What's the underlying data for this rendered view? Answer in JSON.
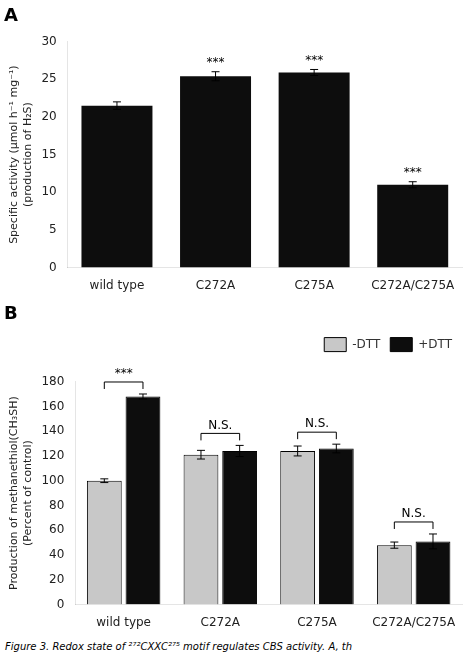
{
  "chart_data": [
    {
      "type": "bar",
      "title": "A",
      "categories": [
        "wild type",
        "C272A",
        "C275A",
        "C272A/C275A"
      ],
      "values": [
        21.5,
        25.4,
        25.9,
        11.0
      ],
      "errors": [
        0.5,
        0.6,
        0.4,
        0.4
      ],
      "color": "#0d0d0d",
      "ylabel": "Specific activity (μmol h⁻¹ mg⁻¹)\n(production of H₂S)",
      "ylim": [
        0,
        30
      ],
      "yticks": [
        0,
        5,
        10,
        15,
        20,
        25,
        30
      ],
      "grid": false,
      "annotations": [
        {
          "category": "C272A",
          "text": "***"
        },
        {
          "category": "C275A",
          "text": "***"
        },
        {
          "category": "C272A/C275A",
          "text": "***"
        }
      ]
    },
    {
      "type": "bar",
      "title": "B",
      "categories": [
        "wild type",
        "C272A",
        "C275A",
        "C272A/C275A"
      ],
      "series": [
        {
          "name": "-DTT",
          "color": "#c8c8c8",
          "values": [
            100,
            121,
            124,
            48
          ],
          "errors": [
            1.5,
            3.5,
            4.0,
            2.5
          ]
        },
        {
          "name": "+DTT",
          "color": "#0d0d0d",
          "values": [
            168,
            124,
            126,
            51
          ],
          "errors": [
            2.0,
            4.5,
            3.5,
            6.0
          ]
        }
      ],
      "ylabel": "Production of methanethiol(CH₃SH)\n(Percent of control)",
      "ylim": [
        0,
        180
      ],
      "yticks": [
        0,
        20,
        40,
        60,
        80,
        100,
        120,
        140,
        160,
        180
      ],
      "grid": false,
      "legend": "upper right",
      "annotations": [
        {
          "category": "wild type",
          "text": "***"
        },
        {
          "category": "C272A",
          "text": "N.S."
        },
        {
          "category": "C275A",
          "text": "N.S."
        },
        {
          "category": "C272A/C275A",
          "text": "N.S."
        }
      ]
    }
  ],
  "caption": "Figure 3. Redox state of ²⁷²CXXC²⁷⁵ motif regulates CBS activity. A, th"
}
